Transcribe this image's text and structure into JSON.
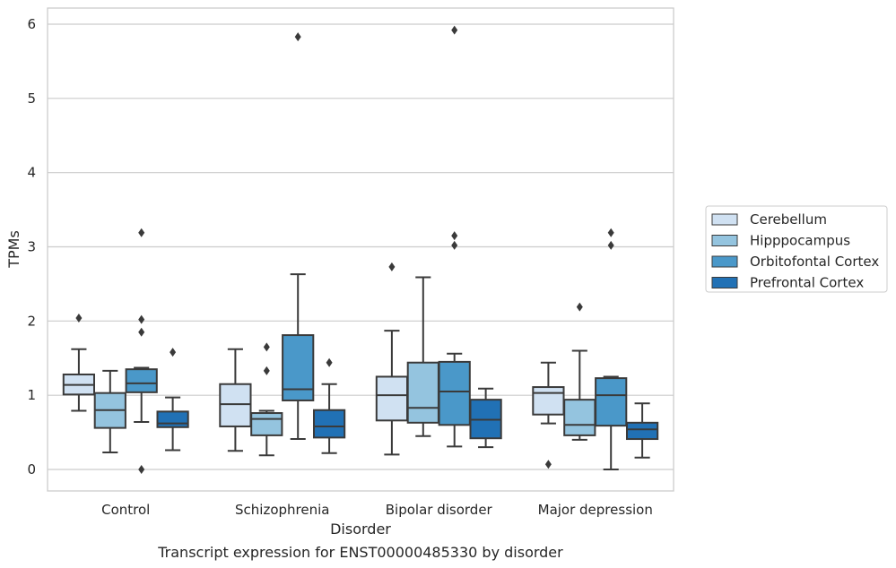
{
  "chart_data": {
    "type": "box",
    "xlabel": "Disorder",
    "ylabel": "TPMs",
    "caption": "Transcript expression for ENST00000485330 by disorder",
    "ylim": [
      -0.3,
      6.22
    ],
    "yticks": [
      0,
      1,
      2,
      3,
      4,
      5,
      6
    ],
    "grid": "horizontal",
    "legend_position": "right",
    "categories": [
      "Control",
      "Schizophrenia",
      "Bipolar disorder",
      "Major depression"
    ],
    "series": [
      {
        "name": "Cerebellum",
        "color": "#d0e1f2",
        "boxes": [
          {
            "whislo": 0.79,
            "q1": 1.01,
            "med": 1.14,
            "q3": 1.28,
            "whishi": 1.62,
            "fliers": [
              2.04
            ]
          },
          {
            "whislo": 0.25,
            "q1": 0.58,
            "med": 0.88,
            "q3": 1.15,
            "whishi": 1.62,
            "fliers": []
          },
          {
            "whislo": 0.2,
            "q1": 0.66,
            "med": 1.0,
            "q3": 1.25,
            "whishi": 1.87,
            "fliers": [
              2.73
            ]
          },
          {
            "whislo": 0.62,
            "q1": 0.74,
            "med": 1.03,
            "q3": 1.11,
            "whishi": 1.44,
            "fliers": [
              0.07
            ]
          }
        ]
      },
      {
        "name": "Hipppocampus",
        "color": "#94c4df",
        "boxes": [
          {
            "whislo": 0.23,
            "q1": 0.56,
            "med": 0.8,
            "q3": 1.03,
            "whishi": 1.33,
            "fliers": []
          },
          {
            "whislo": 0.19,
            "q1": 0.46,
            "med": 0.68,
            "q3": 0.76,
            "whishi": 0.79,
            "fliers": [
              1.65,
              1.33
            ]
          },
          {
            "whislo": 0.45,
            "q1": 0.63,
            "med": 0.83,
            "q3": 1.44,
            "whishi": 2.59,
            "fliers": []
          },
          {
            "whislo": 0.4,
            "q1": 0.46,
            "med": 0.6,
            "q3": 0.94,
            "whishi": 1.6,
            "fliers": [
              2.19
            ]
          }
        ]
      },
      {
        "name": "Orbitofontal Cortex",
        "color": "#4a98c9",
        "boxes": [
          {
            "whislo": 0.64,
            "q1": 1.04,
            "med": 1.16,
            "q3": 1.35,
            "whishi": 1.37,
            "fliers": [
              0.0,
              1.85,
              2.02,
              3.19
            ]
          },
          {
            "whislo": 0.41,
            "q1": 0.93,
            "med": 1.08,
            "q3": 1.81,
            "whishi": 2.63,
            "fliers": [
              5.83
            ]
          },
          {
            "whislo": 0.31,
            "q1": 0.6,
            "med": 1.05,
            "q3": 1.45,
            "whishi": 1.56,
            "fliers": [
              3.02,
              3.15,
              5.92
            ]
          },
          {
            "whislo": 0.0,
            "q1": 0.59,
            "med": 1.0,
            "q3": 1.23,
            "whishi": 1.25,
            "fliers": [
              3.02,
              3.19
            ]
          }
        ]
      },
      {
        "name": "Prefrontal Cortex",
        "color": "#2171b5",
        "boxes": [
          {
            "whislo": 0.26,
            "q1": 0.57,
            "med": 0.62,
            "q3": 0.78,
            "whishi": 0.97,
            "fliers": [
              1.58
            ]
          },
          {
            "whislo": 0.22,
            "q1": 0.43,
            "med": 0.58,
            "q3": 0.8,
            "whishi": 1.15,
            "fliers": [
              1.44
            ]
          },
          {
            "whislo": 0.3,
            "q1": 0.42,
            "med": 0.67,
            "q3": 0.94,
            "whishi": 1.09,
            "fliers": []
          },
          {
            "whislo": 0.16,
            "q1": 0.41,
            "med": 0.54,
            "q3": 0.63,
            "whishi": 0.89,
            "fliers": []
          }
        ]
      }
    ]
  }
}
